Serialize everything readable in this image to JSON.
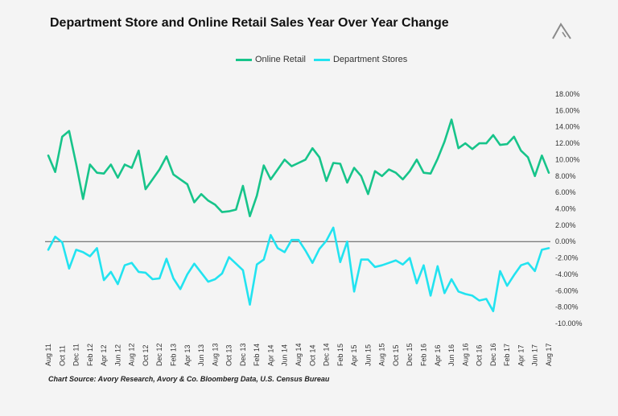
{
  "logo_icon": "avory-triangle-logo-icon",
  "source": "Chart Source:  Avory Research, Avory & Co. Bloomberg Data, U.S. Census Bureau",
  "chart_data": {
    "type": "line",
    "title": "Department Store and Online Retail Sales Year Over Year Change",
    "xlabel": "",
    "ylabel": "",
    "ylim": [
      -10,
      18
    ],
    "yticks": [
      "18.00%",
      "16.00%",
      "14.00%",
      "12.00%",
      "10.00%",
      "8.00%",
      "6.00%",
      "4.00%",
      "2.00%",
      "0.00%",
      "-2.00%",
      "-4.00%",
      "-6.00%",
      "-8.00%",
      "-10.00%"
    ],
    "ytick_values": [
      18,
      16,
      14,
      12,
      10,
      8,
      6,
      4,
      2,
      0,
      -2,
      -4,
      -6,
      -8,
      -10
    ],
    "xtick_labels": [
      "Aug 11",
      "Oct 11",
      "Dec 11",
      "Feb 12",
      "Apr 12",
      "Jun 12",
      "Aug 12",
      "Oct 12",
      "Dec 12",
      "Feb 13",
      "Apr 13",
      "Jun 13",
      "Aug 13",
      "Oct 13",
      "Dec 13",
      "Feb 14",
      "Apr 14",
      "Jun 14",
      "Aug 14",
      "Oct 14",
      "Dec 14",
      "Feb 15",
      "Apr 15",
      "Jun 15",
      "Aug 15",
      "Oct 15",
      "Dec 15",
      "Feb 16",
      "Apr 16",
      "Jun 16",
      "Aug 16",
      "Oct 16",
      "Dec 16",
      "Feb 17",
      "Apr 17",
      "Jun 17",
      "Aug 17"
    ],
    "x": [
      "Aug 11",
      "Sep 11",
      "Oct 11",
      "Nov 11",
      "Dec 11",
      "Jan 12",
      "Feb 12",
      "Mar 12",
      "Apr 12",
      "May 12",
      "Jun 12",
      "Jul 12",
      "Aug 12",
      "Sep 12",
      "Oct 12",
      "Nov 12",
      "Dec 12",
      "Jan 13",
      "Feb 13",
      "Mar 13",
      "Apr 13",
      "May 13",
      "Jun 13",
      "Jul 13",
      "Aug 13",
      "Sep 13",
      "Oct 13",
      "Nov 13",
      "Dec 13",
      "Jan 14",
      "Feb 14",
      "Mar 14",
      "Apr 14",
      "May 14",
      "Jun 14",
      "Jul 14",
      "Aug 14",
      "Sep 14",
      "Oct 14",
      "Nov 14",
      "Dec 14",
      "Jan 15",
      "Feb 15",
      "Mar 15",
      "Apr 15",
      "May 15",
      "Jun 15",
      "Jul 15",
      "Aug 15",
      "Sep 15",
      "Oct 15",
      "Nov 15",
      "Dec 15",
      "Jan 16",
      "Feb 16",
      "Mar 16",
      "Apr 16",
      "May 16",
      "Jun 16",
      "Jul 16",
      "Aug 16",
      "Sep 16",
      "Oct 16",
      "Nov 16",
      "Dec 16",
      "Jan 17",
      "Feb 17",
      "Mar 17",
      "Apr 17",
      "May 17",
      "Jun 17",
      "Jul 17",
      "Aug 17"
    ],
    "legend_position": "top-center",
    "grid": false,
    "reference_line": 0,
    "series": [
      {
        "name": "Online Retail",
        "color": "#17c48a",
        "values": [
          10.5,
          8.5,
          12.8,
          13.5,
          9.5,
          5.2,
          9.4,
          8.4,
          8.3,
          9.4,
          7.8,
          9.4,
          9.0,
          11.1,
          6.4,
          7.6,
          8.8,
          10.4,
          8.2,
          7.6,
          7.0,
          4.8,
          5.8,
          5.0,
          4.5,
          3.6,
          3.7,
          3.9,
          6.8,
          3.1,
          5.6,
          9.3,
          7.6,
          8.8,
          10.0,
          9.2,
          9.6,
          10.0,
          11.4,
          10.3,
          7.4,
          9.6,
          9.5,
          7.2,
          9.0,
          8.0,
          5.8,
          8.6,
          8.0,
          8.8,
          8.4,
          7.6,
          8.6,
          10.0,
          8.4,
          8.3,
          10.1,
          12.2,
          14.9,
          11.4,
          12.0,
          11.3,
          12.0,
          12.0,
          13.0,
          11.8,
          11.9,
          12.8,
          11.1,
          10.3,
          8.0,
          10.5,
          8.4
        ]
      },
      {
        "name": "Department Stores",
        "color": "#22e3f0",
        "values": [
          -1.0,
          0.6,
          -0.1,
          -3.3,
          -1.0,
          -1.3,
          -1.8,
          -0.8,
          -4.7,
          -3.7,
          -5.2,
          -2.9,
          -2.6,
          -3.7,
          -3.8,
          -4.6,
          -4.5,
          -2.1,
          -4.5,
          -5.8,
          -4.0,
          -2.7,
          -3.8,
          -4.9,
          -4.6,
          -3.9,
          -1.9,
          -2.7,
          -3.5,
          -7.7,
          -2.8,
          -2.2,
          0.8,
          -0.8,
          -1.3,
          0.2,
          0.2,
          -1.1,
          -2.6,
          -0.9,
          0.1,
          1.7,
          -2.5,
          0.0,
          -6.1,
          -2.2,
          -2.2,
          -3.1,
          -2.9,
          -2.6,
          -2.3,
          -2.8,
          -2.0,
          -5.1,
          -2.9,
          -6.6,
          -3.0,
          -6.3,
          -4.6,
          -6.1,
          -6.4,
          -6.6,
          -7.2,
          -7.0,
          -8.5,
          -3.6,
          -5.4,
          -4.1,
          -2.9,
          -2.6,
          -3.6,
          -1.0,
          -0.8
        ]
      }
    ]
  }
}
